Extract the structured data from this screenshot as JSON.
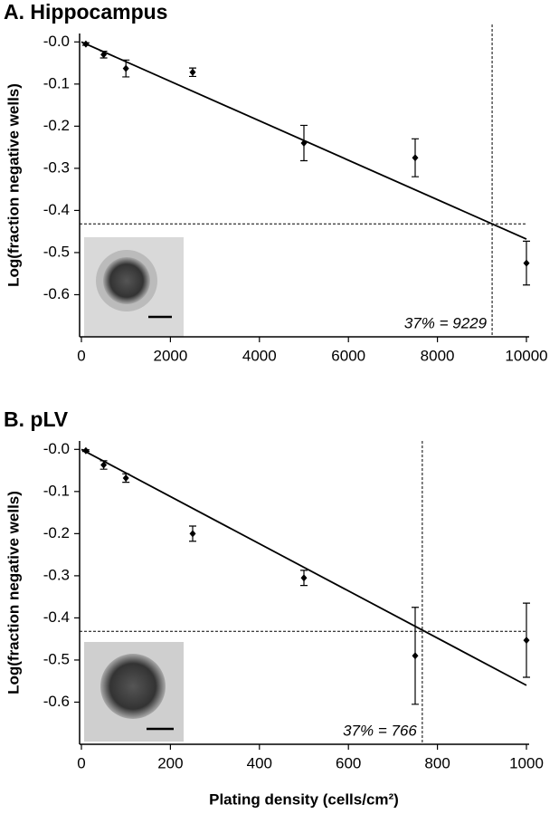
{
  "chart_data": [
    {
      "type": "scatter",
      "title": "A. Hippocampus",
      "y_label": "Log(fraction negative wells)",
      "xlim": [
        0,
        10000
      ],
      "ylim": [
        -0.7,
        0.02
      ],
      "xticks": [
        0,
        2000,
        4000,
        6000,
        8000,
        10000
      ],
      "yticks": [
        {
          "value": 0,
          "label": "-0.0"
        },
        -0.1,
        -0.2,
        -0.3,
        -0.4,
        -0.5,
        -0.6
      ],
      "series": [
        {
          "color": "#000000",
          "x": [
            100,
            500,
            1000,
            2500,
            5000,
            7500,
            10000
          ],
          "values": [
            -0.005,
            -0.03,
            -0.063,
            -0.072,
            -0.24,
            -0.275,
            -0.525
          ],
          "errors": [
            0.003,
            0.008,
            0.02,
            0.01,
            0.042,
            0.045,
            0.052
          ]
        }
      ],
      "fit": {
        "x": [
          0,
          10000
        ],
        "y": [
          0,
          -0.468
        ]
      },
      "threshold": {
        "x": 9229,
        "y": -0.432
      },
      "annotation": "37% = 9229"
    },
    {
      "type": "scatter",
      "title": "B.  pLV",
      "y_label": "Log(fraction negative wells)",
      "x_label": "Plating density (cells/cm²)",
      "xlim": [
        0,
        1000
      ],
      "ylim": [
        -0.7,
        0.02
      ],
      "xticks": [
        0,
        200,
        400,
        600,
        800,
        1000
      ],
      "yticks": [
        {
          "value": 0,
          "label": "-0.0"
        },
        -0.1,
        -0.2,
        -0.3,
        -0.4,
        -0.5,
        -0.6
      ],
      "series": [
        {
          "color": "#000000",
          "x": [
            10,
            50,
            100,
            250,
            500,
            750,
            1000
          ],
          "values": [
            -0.003,
            -0.037,
            -0.068,
            -0.2,
            -0.305,
            -0.49,
            -0.453
          ],
          "errors": [
            0.002,
            0.01,
            0.01,
            0.018,
            0.018,
            0.115,
            0.088
          ]
        }
      ],
      "fit": {
        "x": [
          0,
          1000
        ],
        "y": [
          0,
          -0.56
        ]
      },
      "threshold": {
        "x": 766,
        "y": -0.432
      },
      "annotation": "37% = 766"
    }
  ]
}
